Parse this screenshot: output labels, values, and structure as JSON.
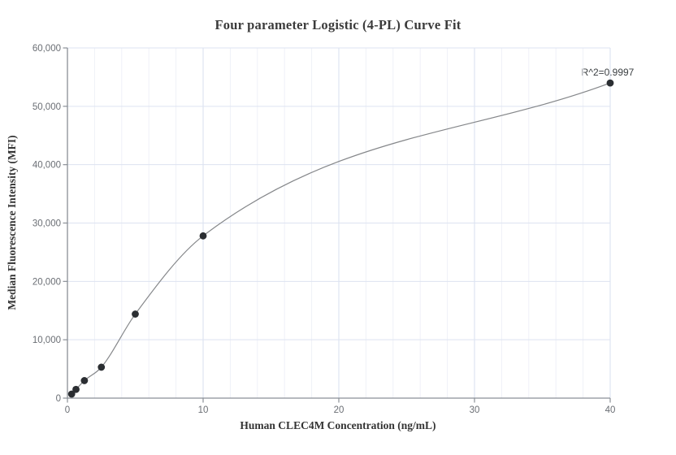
{
  "chart_data": {
    "type": "scatter",
    "title": "Four parameter Logistic (4-PL) Curve Fit",
    "xlabel": "Human CLEC4M Concentration (ng/mL)",
    "ylabel": "Median Fluorescence Intensity (MFI)",
    "annotation": "R^2=0.9997",
    "r_squared": 0.9997,
    "series": [
      {
        "name": "Standard curve points",
        "x": [
          0.31,
          0.63,
          1.25,
          2.5,
          5,
          10,
          40
        ],
        "y": [
          700,
          1500,
          3000,
          5300,
          14400,
          27800,
          54000
        ]
      }
    ],
    "fit_curve": "smooth 4-PL fit line through all points, from first point to last point",
    "xlim": [
      0,
      40
    ],
    "ylim": [
      0,
      60000
    ],
    "x_ticks": [
      0,
      10,
      20,
      30,
      40
    ],
    "y_ticks": [
      0,
      10000,
      20000,
      30000,
      40000,
      50000,
      60000
    ],
    "x_minor_grid_step": 2,
    "grid": true,
    "legend": "none",
    "colors": {
      "point": "#2b2e32",
      "fit_line": "#85878a",
      "axis": "#8a8f96",
      "tick_label": "#6a6e74",
      "grid_horizontal": "#dde3f1",
      "grid_vertical_major": "#d7dfef",
      "grid_vertical_minor": "#eff1f8",
      "title_text": "#3b3b3b",
      "axis_label_text": "#333333",
      "annotation_text": "#3c4043",
      "background": "#ffffff"
    }
  }
}
